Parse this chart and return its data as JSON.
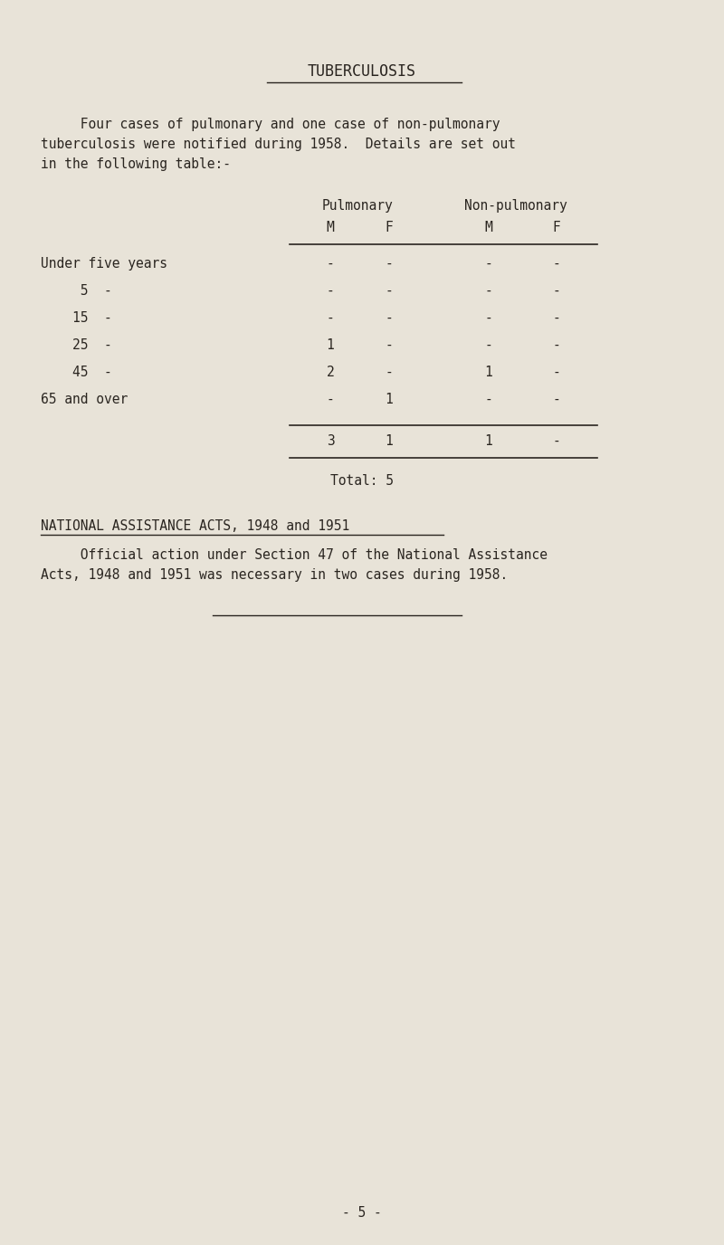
{
  "bg_color": "#e8e3d8",
  "text_color": "#2a2520",
  "title": "TUBERCULOSIS",
  "intro_lines": [
    "     Four cases of pulmonary and one case of non-pulmonary",
    "tuberculosis were notified during 1958.  Details are set out",
    "in the following table:-"
  ],
  "col_headers_level1": [
    "Pulmonary",
    "Non-pulmonary"
  ],
  "col_headers_level2": [
    "M",
    "F",
    "M",
    "F"
  ],
  "row_labels": [
    "Under five years",
    "     5  -",
    "    15  -",
    "    25  -",
    "    45  -",
    "65 and over"
  ],
  "table_data": [
    [
      "-",
      "-",
      "-",
      "-"
    ],
    [
      "-",
      "-",
      "-",
      "-"
    ],
    [
      "-",
      "-",
      "-",
      "-"
    ],
    [
      "1",
      "-",
      "-",
      "-"
    ],
    [
      "2",
      "-",
      "1",
      "-"
    ],
    [
      "-",
      "1",
      "-",
      "-"
    ]
  ],
  "totals": [
    "3",
    "1",
    "1",
    "-"
  ],
  "total_label": "Total: 5",
  "section2_title": "NATIONAL ASSISTANCE ACTS, 1948 and 1951",
  "section2_lines": [
    "     Official action under Section 47 of the National Assistance",
    "Acts, 1948 and 1951 was necessary in two cases during 1958."
  ],
  "page_number": "- 5 -",
  "font_size_title": 12,
  "font_size_body": 10.5,
  "font_size_small": 10
}
